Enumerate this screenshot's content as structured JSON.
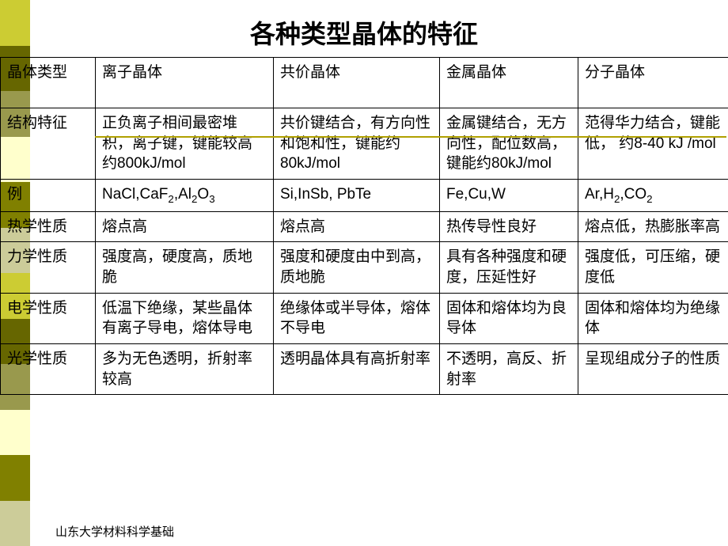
{
  "title": "各种类型晶体的特征",
  "footer": "山东大学材料科学基础",
  "sidebar_colors": [
    "#cccc33",
    "#666600",
    "#99994d",
    "#ffffcc",
    "#808000",
    "#cccc99",
    "#cccc33",
    "#666600",
    "#99994d",
    "#ffffcc",
    "#808000",
    "#cccc99"
  ],
  "accent_line_color": "#b0a000",
  "table": {
    "columns": [
      "col0",
      "col1",
      "col2",
      "col3",
      "col4"
    ],
    "rows": [
      [
        "晶体类型",
        "离子晶体",
        "共价晶体",
        "金属晶体",
        "分子晶体"
      ],
      [
        "结构特征",
        "正负离子相间最密堆积，离子键，键能较高约800kJ/mol",
        "共价键结合，有方向性和饱和性，键能约80kJ/mol",
        "金属键结合，无方向性，配位数高，键能约80kJ/mol",
        "范得华力结合，键能低， 约8-40 kJ /mol"
      ],
      [
        "例",
        "NaCl,CaF<sub>2</sub>,Al<sub>2</sub>O<sub>3</sub>",
        "Si,InSb, PbTe",
        "Fe,Cu,W",
        "Ar,H<sub>2</sub>,CO<sub>2</sub>"
      ],
      [
        "热学性质",
        "熔点高",
        "熔点高",
        "热传导性良好",
        "熔点低，热膨胀率高"
      ],
      [
        "力学性质",
        "强度高，硬度高，质地脆",
        "强度和硬度由中到高，质地脆",
        "具有各种强度和硬度，压延性好",
        "强度低，可压缩，硬度低"
      ],
      [
        "电学性质",
        "低温下绝缘，某些晶体有离子导电，熔体导电",
        "绝缘体或半导体，熔体不导电",
        "固体和熔体均为良导体",
        "固体和熔体均为绝缘体"
      ],
      [
        "光学性质",
        "多为无色透明，折射率较高",
        "透明晶体具有高折射率",
        "不透明，高反、折射率",
        "呈现组成分子的性质"
      ]
    ]
  }
}
